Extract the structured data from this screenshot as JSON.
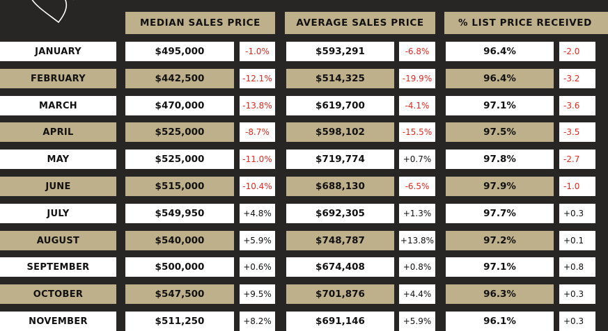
{
  "headers": {
    "median": "MEDIAN SALES PRICE",
    "average": "AVERAGE SALES PRICE",
    "list": "% LIST PRICE RECEIVED"
  },
  "colors": {
    "gold": "#bfb08c",
    "white": "#ffffff",
    "background": "#272625",
    "negative": "#e8271f"
  },
  "rows": [
    {
      "month": "JANUARY",
      "median": "$495,000",
      "median_chg": "-1.0%",
      "avg": "$593,291",
      "avg_chg": "-6.8%",
      "list": "96.4%",
      "list_chg": "-2.0"
    },
    {
      "month": "FEBRUARY",
      "median": "$442,500",
      "median_chg": "-12.1%",
      "avg": "$514,325",
      "avg_chg": "-19.9%",
      "list": "96.4%",
      "list_chg": "-3.2"
    },
    {
      "month": "MARCH",
      "median": "$470,000",
      "median_chg": "-13.8%",
      "avg": "$619,700",
      "avg_chg": "-4.1%",
      "list": "97.1%",
      "list_chg": "-3.6"
    },
    {
      "month": "APRIL",
      "median": "$525,000",
      "median_chg": "-8.7%",
      "avg": "$598,102",
      "avg_chg": "-15.5%",
      "list": "97.5%",
      "list_chg": "-3.5"
    },
    {
      "month": "MAY",
      "median": "$525,000",
      "median_chg": "-11.0%",
      "avg": "$719,774",
      "avg_chg": "+0.7%",
      "list": "97.8%",
      "list_chg": "-2.7"
    },
    {
      "month": "JUNE",
      "median": "$515,000",
      "median_chg": "-10.4%",
      "avg": "$688,130",
      "avg_chg": "-6.5%",
      "list": "97.9%",
      "list_chg": "-1.0"
    },
    {
      "month": "JULY",
      "median": "$549,950",
      "median_chg": "+4.8%",
      "avg": "$692,305",
      "avg_chg": "+1.3%",
      "list": "97.7%",
      "list_chg": "+0.3"
    },
    {
      "month": "AUGUST",
      "median": "$540,000",
      "median_chg": "+5.9%",
      "avg": "$748,787",
      "avg_chg": "+13.8%",
      "list": "97.2%",
      "list_chg": "+0.1"
    },
    {
      "month": "SEPTEMBER",
      "median": "$500,000",
      "median_chg": "+0.6%",
      "avg": "$674,408",
      "avg_chg": "+0.8%",
      "list": "97.1%",
      "list_chg": "+0.8"
    },
    {
      "month": "OCTOBER",
      "median": "$547,500",
      "median_chg": "+9.5%",
      "avg": "$701,876",
      "avg_chg": "+4.4%",
      "list": "96.3%",
      "list_chg": "+0.3"
    },
    {
      "month": "NOVEMBER",
      "median": "$511,250",
      "median_chg": "+8.2%",
      "avg": "$691,146",
      "avg_chg": "+5.9%",
      "list": "96.1%",
      "list_chg": "+0.3"
    }
  ]
}
